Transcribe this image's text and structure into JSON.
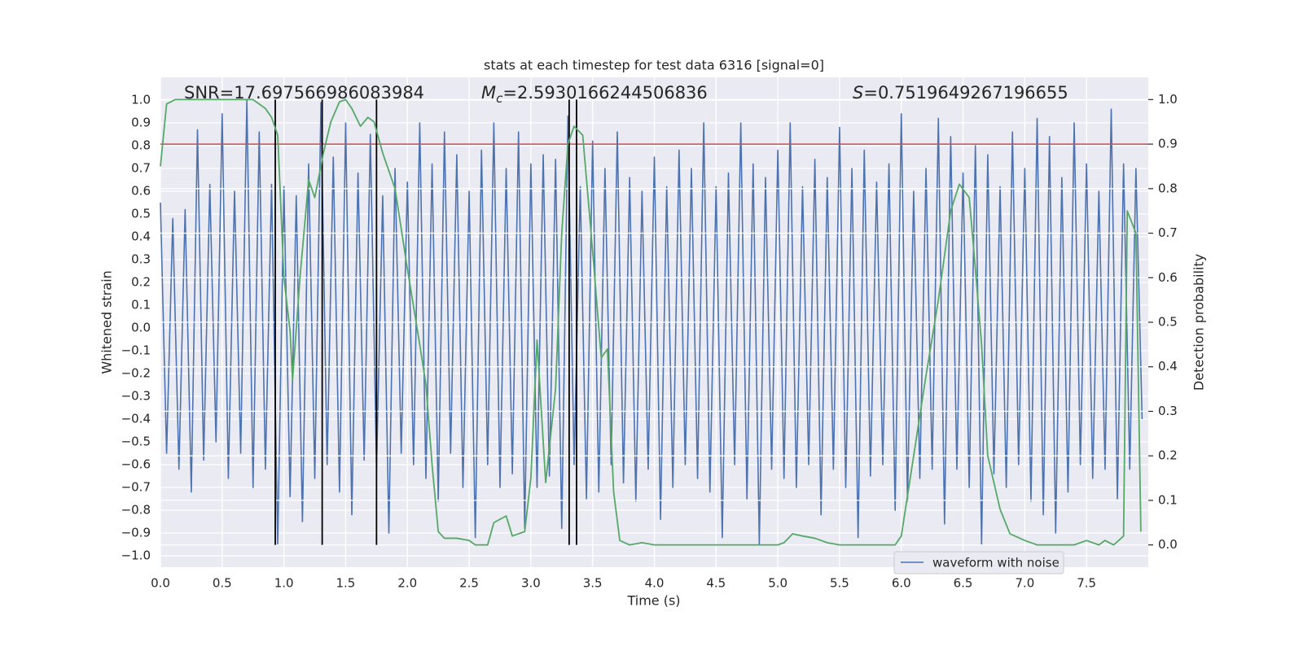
{
  "chart_data": {
    "type": "line",
    "title": "stats at each timestep for test data 6316 [signal=0]",
    "x_label": "Time (s)",
    "y_label": "Whitened strain",
    "y2_label": "Detection probability",
    "xlim": [
      0,
      8.0
    ],
    "ylim": [
      -1.05,
      1.1
    ],
    "y2lim": [
      -0.05,
      1.05
    ],
    "grid": true,
    "background": "#eaeaf2",
    "legend": "lower right",
    "xticks": [
      {
        "value": 0,
        "label": "0.0"
      },
      {
        "value": 0.5,
        "label": "0.5"
      },
      {
        "value": 1,
        "label": "1.0"
      },
      {
        "value": 1.5,
        "label": "1.5"
      },
      {
        "value": 2,
        "label": "2.0"
      },
      {
        "value": 2.5,
        "label": "2.5"
      },
      {
        "value": 3,
        "label": "3.0"
      },
      {
        "value": 3.5,
        "label": "3.5"
      },
      {
        "value": 4,
        "label": "4.0"
      },
      {
        "value": 4.5,
        "label": "4.5"
      },
      {
        "value": 5,
        "label": "5.0"
      },
      {
        "value": 5.5,
        "label": "5.5"
      },
      {
        "value": 6,
        "label": "6.0"
      },
      {
        "value": 6.5,
        "label": "6.5"
      },
      {
        "value": 7,
        "label": "7.0"
      },
      {
        "value": 7.5,
        "label": "7.5"
      }
    ],
    "yticks": [
      {
        "value": -1.0,
        "label": "−1.0"
      },
      {
        "value": -0.9,
        "label": "−0.9"
      },
      {
        "value": -0.8,
        "label": "−0.8"
      },
      {
        "value": -0.7,
        "label": "−0.7"
      },
      {
        "value": -0.6,
        "label": "−0.6"
      },
      {
        "value": -0.5,
        "label": "−0.5"
      },
      {
        "value": -0.4,
        "label": "−0.4"
      },
      {
        "value": -0.3,
        "label": "−0.3"
      },
      {
        "value": -0.2,
        "label": "−0.2"
      },
      {
        "value": -0.1,
        "label": "−0.1"
      },
      {
        "value": 0,
        "label": "0.0"
      },
      {
        "value": 0.1,
        "label": "0.1"
      },
      {
        "value": 0.2,
        "label": "0.2"
      },
      {
        "value": 0.3,
        "label": "0.3"
      },
      {
        "value": 0.4,
        "label": "0.4"
      },
      {
        "value": 0.5,
        "label": "0.5"
      },
      {
        "value": 0.6,
        "label": "0.6"
      },
      {
        "value": 0.7,
        "label": "0.7"
      },
      {
        "value": 0.8,
        "label": "0.8"
      },
      {
        "value": 0.9,
        "label": "0.9"
      },
      {
        "value": 1.0,
        "label": "1.0"
      }
    ],
    "y2ticks": [
      {
        "value": 0,
        "label": "0.0"
      },
      {
        "value": 0.1,
        "label": "0.1"
      },
      {
        "value": 0.2,
        "label": "0.2"
      },
      {
        "value": 0.3,
        "label": "0.3"
      },
      {
        "value": 0.4,
        "label": "0.4"
      },
      {
        "value": 0.5,
        "label": "0.5"
      },
      {
        "value": 0.6,
        "label": "0.6"
      },
      {
        "value": 0.7,
        "label": "0.7"
      },
      {
        "value": 0.8,
        "label": "0.8"
      },
      {
        "value": 0.9,
        "label": "0.9"
      },
      {
        "value": 1.0,
        "label": "1.0"
      }
    ],
    "threshold_line": {
      "value": 0.9,
      "axis": "y2",
      "color": "#c44e52"
    },
    "vlines": {
      "x": [
        0.93,
        1.31,
        1.75,
        3.31,
        3.37
      ],
      "ymin": 0,
      "ymax": 1,
      "axis": "y2",
      "color": "#000000"
    },
    "annotations": [
      {
        "text": "SNR=17.697566986083984"
      },
      {
        "symbol": "M",
        "subscript": "c",
        "text": "=2.5930166244506836"
      },
      {
        "symbol": "S",
        "text": "=0.7519649267196655"
      }
    ],
    "series": [
      {
        "name": "waveform with noise",
        "color": "#4c72b0",
        "x": [
          0,
          0.05,
          0.1,
          0.15,
          0.2,
          0.25,
          0.3,
          0.35,
          0.4,
          0.45,
          0.5,
          0.55,
          0.6,
          0.65,
          0.7,
          0.75,
          0.8,
          0.85,
          0.9,
          0.95,
          1,
          1.05,
          1.1,
          1.15,
          1.2,
          1.25,
          1.3,
          1.35,
          1.4,
          1.45,
          1.5,
          1.55,
          1.6,
          1.65,
          1.7,
          1.75,
          1.8,
          1.85,
          1.9,
          1.95,
          2,
          2.05,
          2.1,
          2.15,
          2.2,
          2.25,
          2.3,
          2.35,
          2.4,
          2.45,
          2.5,
          2.55,
          2.6,
          2.65,
          2.7,
          2.75,
          2.8,
          2.85,
          2.9,
          2.95,
          3,
          3.05,
          3.1,
          3.15,
          3.2,
          3.25,
          3.3,
          3.35,
          3.4,
          3.45,
          3.5,
          3.55,
          3.6,
          3.65,
          3.7,
          3.75,
          3.8,
          3.85,
          3.9,
          3.95,
          4,
          4.05,
          4.1,
          4.15,
          4.2,
          4.25,
          4.3,
          4.35,
          4.4,
          4.45,
          4.5,
          4.55,
          4.6,
          4.65,
          4.7,
          4.75,
          4.8,
          4.85,
          4.9,
          4.95,
          5,
          5.05,
          5.1,
          5.15,
          5.2,
          5.25,
          5.3,
          5.35,
          5.4,
          5.45,
          5.5,
          5.55,
          5.6,
          5.65,
          5.7,
          5.75,
          5.8,
          5.85,
          5.9,
          5.95,
          6,
          6.05,
          6.1,
          6.15,
          6.2,
          6.25,
          6.3,
          6.35,
          6.4,
          6.45,
          6.5,
          6.55,
          6.6,
          6.65,
          6.7,
          6.75,
          6.8,
          6.85,
          6.9,
          6.95,
          7,
          7.05,
          7.1,
          7.15,
          7.2,
          7.25,
          7.3,
          7.35,
          7.4,
          7.45,
          7.5,
          7.55,
          7.6,
          7.65,
          7.7,
          7.75,
          7.8,
          7.85,
          7.9,
          7.95
        ],
        "values": [
          0.55,
          -0.55,
          0.48,
          -0.62,
          0.52,
          -0.72,
          0.87,
          -0.58,
          0.63,
          -0.5,
          0.94,
          -0.66,
          0.6,
          -0.55,
          1.0,
          -0.7,
          0.86,
          -0.62,
          0.63,
          -0.95,
          0.62,
          -0.74,
          0.58,
          -0.85,
          0.72,
          -0.66,
          0.99,
          -0.6,
          0.75,
          -0.72,
          0.9,
          -0.82,
          0.68,
          -0.58,
          0.85,
          -0.62,
          0.58,
          -0.9,
          0.7,
          -0.55,
          0.64,
          -0.6,
          0.9,
          -0.66,
          0.72,
          -0.76,
          0.86,
          -0.55,
          0.76,
          -0.7,
          0.6,
          -0.92,
          0.78,
          -0.6,
          0.9,
          -0.7,
          0.7,
          -0.64,
          0.86,
          -0.88,
          0.72,
          -0.7,
          0.76,
          -0.65,
          0.74,
          -0.88,
          0.93,
          -0.6,
          0.62,
          -0.75,
          0.82,
          -0.72,
          0.7,
          -0.6,
          0.86,
          -0.68,
          0.66,
          -0.76,
          0.6,
          -0.62,
          0.75,
          -0.84,
          0.62,
          -0.7,
          0.78,
          -0.6,
          0.7,
          -0.66,
          0.9,
          -0.72,
          0.62,
          -0.92,
          0.68,
          -0.6,
          0.9,
          -0.75,
          0.72,
          -0.95,
          0.66,
          -0.62,
          0.78,
          -0.66,
          0.9,
          -0.7,
          0.62,
          -0.6,
          0.74,
          -0.82,
          0.66,
          -0.62,
          0.88,
          -0.7,
          0.7,
          -0.92,
          0.78,
          -0.65,
          0.64,
          -0.6,
          0.72,
          -0.8,
          0.94,
          -0.76,
          0.6,
          -0.66,
          0.7,
          -0.62,
          0.92,
          -0.86,
          0.84,
          -0.62,
          0.68,
          -0.7,
          0.8,
          -0.95,
          0.76,
          -0.64,
          0.62,
          -0.7,
          0.86,
          -0.6,
          0.7,
          -0.76,
          0.92,
          -0.82,
          0.84,
          -0.9,
          0.66,
          -0.72,
          0.9,
          -0.6,
          0.72,
          -0.66,
          0.6,
          -0.62,
          0.96,
          -0.75,
          0.72,
          -0.62,
          0.7,
          -0.4
        ]
      },
      {
        "color": "#55a868",
        "axis": "y2",
        "x": [
          0,
          0.05,
          0.12,
          0.3,
          0.5,
          0.75,
          0.85,
          0.9,
          0.95,
          1.0,
          1.05,
          1.07,
          1.13,
          1.2,
          1.25,
          1.32,
          1.38,
          1.45,
          1.5,
          1.55,
          1.62,
          1.68,
          1.73,
          1.8,
          1.9,
          2.0,
          2.1,
          2.15,
          2.2,
          2.25,
          2.3,
          2.4,
          2.5,
          2.55,
          2.65,
          2.7,
          2.8,
          2.85,
          2.95,
          3.0,
          3.05,
          3.12,
          3.2,
          3.25,
          3.3,
          3.35,
          3.42,
          3.5,
          3.57,
          3.62,
          3.67,
          3.72,
          3.8,
          3.9,
          4.0,
          4.5,
          4.8,
          5.0,
          5.05,
          5.12,
          5.2,
          5.3,
          5.4,
          5.5,
          5.7,
          5.95,
          6.0,
          6.1,
          6.2,
          6.3,
          6.4,
          6.47,
          6.55,
          6.6,
          6.65,
          6.7,
          6.8,
          6.88,
          7.0,
          7.1,
          7.4,
          7.5,
          7.6,
          7.65,
          7.72,
          7.8,
          7.83,
          7.9,
          7.94
        ],
        "values": [
          0.85,
          0.99,
          1.0,
          1.0,
          1.0,
          1.0,
          0.98,
          0.96,
          0.92,
          0.6,
          0.48,
          0.37,
          0.6,
          0.82,
          0.78,
          0.88,
          0.95,
          0.995,
          1.0,
          0.98,
          0.94,
          0.96,
          0.95,
          0.88,
          0.8,
          0.62,
          0.45,
          0.36,
          0.18,
          0.03,
          0.015,
          0.015,
          0.01,
          0.0,
          0.0,
          0.05,
          0.065,
          0.02,
          0.03,
          0.15,
          0.46,
          0.14,
          0.35,
          0.7,
          0.9,
          0.94,
          0.92,
          0.66,
          0.42,
          0.44,
          0.12,
          0.01,
          0.0,
          0.005,
          0.0,
          0.0,
          0.0,
          0.0,
          0.005,
          0.025,
          0.02,
          0.015,
          0.005,
          0.0,
          0.0,
          0.0,
          0.02,
          0.2,
          0.38,
          0.55,
          0.75,
          0.81,
          0.78,
          0.62,
          0.45,
          0.2,
          0.08,
          0.025,
          0.01,
          0.0,
          0.0,
          0.01,
          0.0,
          0.01,
          0.0,
          0.02,
          0.75,
          0.7,
          0.03
        ]
      }
    ]
  }
}
